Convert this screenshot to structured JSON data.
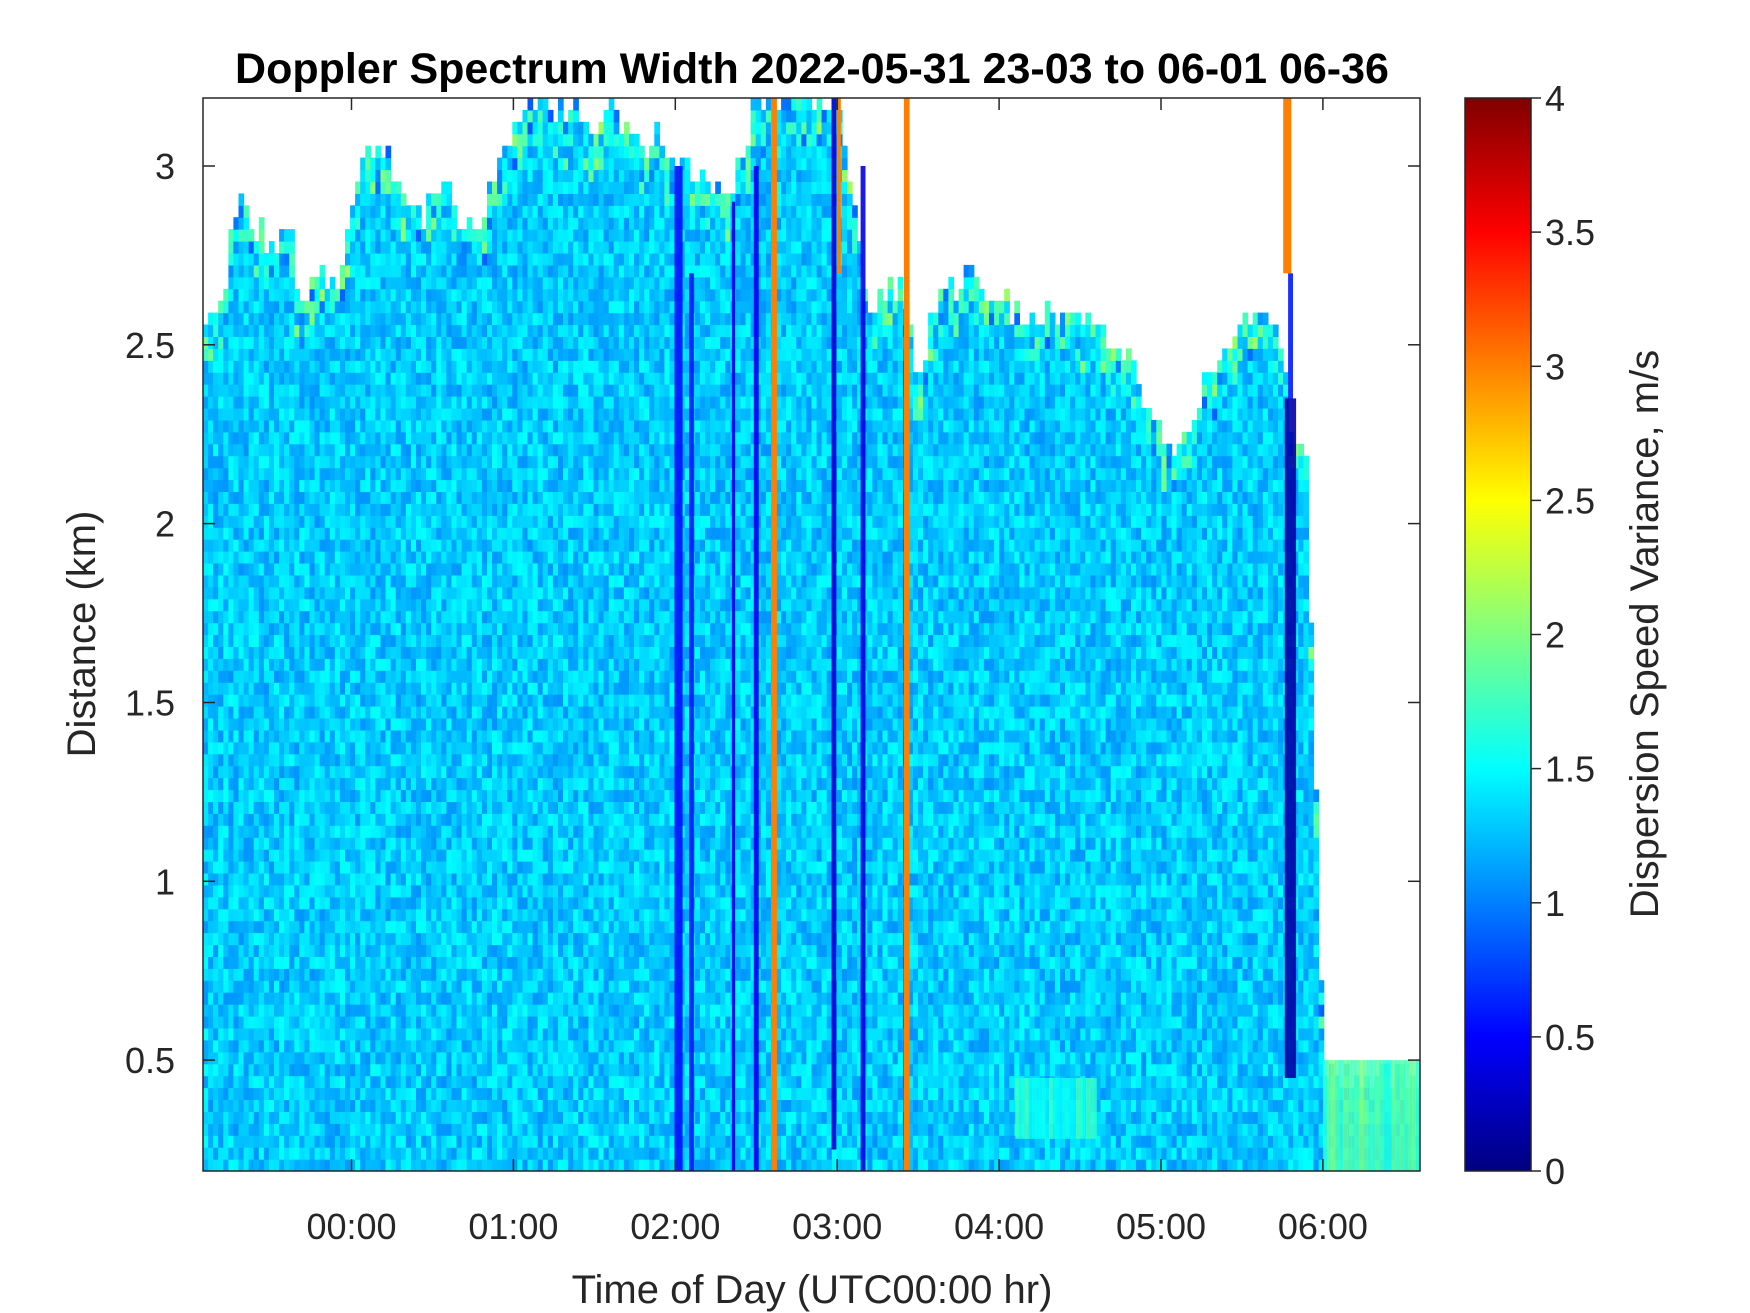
{
  "chart_data": {
    "type": "heatmap",
    "title": "Doppler Spectrum Width 2022-05-31 23-03 to 06-01 06-36",
    "xlabel": "Time of Day (UTC00:00 hr)",
    "ylabel": "Distance (km)",
    "colorbar_label": "Dispersion Speed Variance, m/s",
    "colormap": "jet",
    "x_units": "hours relative to 2022-06-01 00:00 UTC",
    "xlim": [
      -0.917,
      6.6
    ],
    "ylim": [
      0.19,
      3.19
    ],
    "clim": [
      0,
      4
    ],
    "x_ticks": [
      0,
      1,
      2,
      3,
      4,
      5,
      6
    ],
    "x_tick_labels": [
      "00:00",
      "01:00",
      "02:00",
      "03:00",
      "04:00",
      "05:00",
      "06:00"
    ],
    "y_ticks": [
      0.5,
      1,
      1.5,
      2,
      2.5,
      3
    ],
    "y_tick_labels": [
      "0.5",
      "1",
      "1.5",
      "2",
      "2.5",
      "3"
    ],
    "c_ticks": [
      0,
      0.5,
      1,
      1.5,
      2,
      2.5,
      3,
      3.5,
      4
    ],
    "c_tick_labels": [
      "0",
      "0.5",
      "1",
      "1.5",
      "2",
      "2.5",
      "3",
      "3.5",
      "4"
    ],
    "background_value": 1.3,
    "echo_top_km": {
      "x": [
        -0.917,
        -0.8,
        -0.7,
        -0.6,
        -0.5,
        -0.4,
        -0.3,
        -0.2,
        -0.1,
        0.0,
        0.1,
        0.2,
        0.3,
        0.4,
        0.5,
        0.6,
        0.7,
        0.8,
        0.9,
        1.0,
        1.1,
        1.2,
        1.3,
        1.4,
        1.5,
        1.6,
        1.7,
        1.8,
        1.9,
        2.0,
        2.1,
        2.2,
        2.3,
        2.4,
        2.5,
        2.6,
        2.7,
        2.8,
        2.9,
        3.0,
        3.1,
        3.2,
        3.3,
        3.4,
        3.5,
        3.6,
        3.7,
        3.8,
        3.9,
        4.0,
        4.1,
        4.2,
        4.3,
        4.4,
        4.5,
        4.6,
        4.7,
        4.8,
        4.9,
        5.0,
        5.1,
        5.2,
        5.3,
        5.4,
        5.5,
        5.6,
        5.7,
        5.8,
        5.9,
        6.0,
        6.1,
        6.2,
        6.3,
        6.4,
        6.5,
        6.6
      ],
      "y": [
        2.55,
        2.65,
        2.9,
        2.85,
        2.75,
        2.85,
        2.6,
        2.7,
        2.65,
        2.9,
        3.05,
        3.05,
        2.95,
        2.85,
        2.9,
        2.95,
        2.8,
        2.85,
        3.0,
        3.1,
        3.19,
        3.19,
        3.15,
        3.19,
        3.1,
        3.19,
        3.1,
        3.05,
        3.1,
        3.0,
        3.0,
        2.95,
        2.9,
        3.0,
        3.19,
        3.19,
        3.19,
        3.19,
        3.19,
        3.19,
        2.9,
        2.6,
        2.65,
        2.65,
        2.4,
        2.6,
        2.65,
        2.7,
        2.65,
        2.65,
        2.6,
        2.55,
        2.6,
        2.6,
        2.55,
        2.55,
        2.5,
        2.45,
        2.35,
        2.25,
        2.2,
        2.3,
        2.4,
        2.5,
        2.55,
        2.6,
        2.6,
        2.3,
        2.2,
        0.5,
        0.45,
        0.45,
        0.45,
        0.45,
        0.45,
        0.45
      ]
    },
    "low_streaks": [
      {
        "x": 2.02,
        "width": 0.05,
        "y0": 0.19,
        "y1": 3.0,
        "value": 0.55
      },
      {
        "x": 2.1,
        "width": 0.03,
        "y0": 0.19,
        "y1": 2.7,
        "value": 0.6
      },
      {
        "x": 2.36,
        "width": 0.02,
        "y0": 0.19,
        "y1": 2.9,
        "value": 0.45
      },
      {
        "x": 2.5,
        "width": 0.03,
        "y0": 0.19,
        "y1": 3.0,
        "value": 0.45
      },
      {
        "x": 2.98,
        "width": 0.03,
        "y0": 0.25,
        "y1": 3.19,
        "value": 0.35
      },
      {
        "x": 3.16,
        "width": 0.03,
        "y0": 0.19,
        "y1": 3.0,
        "value": 0.4
      },
      {
        "x": 3.42,
        "width": 0.02,
        "y0": 0.19,
        "y1": 2.6,
        "value": 0.5
      },
      {
        "x": 5.8,
        "width": 0.07,
        "y0": 0.45,
        "y1": 2.35,
        "value": 0.15
      },
      {
        "x": 5.8,
        "width": 0.03,
        "y0": 2.35,
        "y1": 2.7,
        "value": 0.6
      }
    ],
    "high_columns": [
      {
        "x": 2.61,
        "width": 0.035,
        "y0": 0.19,
        "y1": 3.19,
        "value": 3.0
      },
      {
        "x": 3.01,
        "width": 0.025,
        "y0": 2.7,
        "y1": 3.19,
        "value": 3.0
      },
      {
        "x": 3.43,
        "width": 0.035,
        "y0": 0.19,
        "y1": 3.19,
        "value": 3.0
      },
      {
        "x": 5.78,
        "width": 0.05,
        "y0": 2.7,
        "y1": 3.19,
        "value": 3.0
      }
    ],
    "low_altitude_features": [
      {
        "x0": 6.0,
        "x1": 6.6,
        "y0": 0.19,
        "y1": 0.5,
        "value": 1.8,
        "note": ""
      },
      {
        "x0": 4.1,
        "x1": 4.6,
        "y0": 0.28,
        "y1": 0.45,
        "value": 1.6,
        "note": ""
      }
    ],
    "clear_gaps": [
      {
        "x0": 6.05,
        "x1": 6.6,
        "y0": 0.5,
        "y1": 3.19
      }
    ]
  }
}
